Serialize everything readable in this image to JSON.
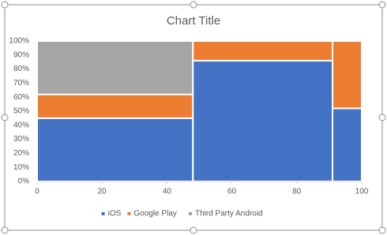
{
  "chart_data": {
    "type": "marimekko",
    "title": "Chart Title",
    "widths": [
      48,
      43,
      9
    ],
    "series": [
      {
        "name": "iOS",
        "color": "#4472c4",
        "values": [
          45,
          86,
          52
        ]
      },
      {
        "name": "Google Play",
        "color": "#ed7d31",
        "values": [
          17,
          14,
          48
        ]
      },
      {
        "name": "Third Party Android",
        "color": "#a5a5a5",
        "values": [
          38,
          0,
          0
        ]
      }
    ],
    "xlim": [
      0,
      100
    ],
    "xticks": [
      0,
      20,
      40,
      60,
      80,
      100
    ],
    "ylim": [
      0,
      100
    ],
    "yticks": [
      {
        "value": 0,
        "label": "0%"
      },
      {
        "value": 10,
        "label": "10%"
      },
      {
        "value": 20,
        "label": "20%"
      },
      {
        "value": 30,
        "label": "30%"
      },
      {
        "value": 40,
        "label": "40%"
      },
      {
        "value": 50,
        "label": "50%"
      },
      {
        "value": 60,
        "label": "60%"
      },
      {
        "value": 70,
        "label": "70%"
      },
      {
        "value": 80,
        "label": "80%"
      },
      {
        "value": 90,
        "label": "90%"
      },
      {
        "value": 100,
        "label": "100%"
      }
    ],
    "legend": "bottom"
  }
}
